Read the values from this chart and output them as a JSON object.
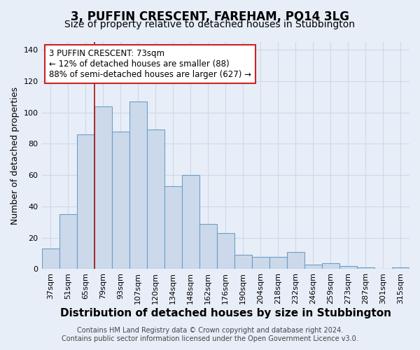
{
  "title": "3, PUFFIN CRESCENT, FAREHAM, PO14 3LG",
  "subtitle": "Size of property relative to detached houses in Stubbington",
  "xlabel": "Distribution of detached houses by size in Stubbington",
  "ylabel": "Number of detached properties",
  "footer_line1": "Contains HM Land Registry data © Crown copyright and database right 2024.",
  "footer_line2": "Contains public sector information licensed under the Open Government Licence v3.0.",
  "bar_labels": [
    "37sqm",
    "51sqm",
    "65sqm",
    "79sqm",
    "93sqm",
    "107sqm",
    "120sqm",
    "134sqm",
    "148sqm",
    "162sqm",
    "176sqm",
    "190sqm",
    "204sqm",
    "218sqm",
    "232sqm",
    "246sqm",
    "259sqm",
    "273sqm",
    "287sqm",
    "301sqm",
    "315sqm"
  ],
  "bar_values": [
    13,
    35,
    86,
    104,
    88,
    107,
    89,
    53,
    60,
    29,
    23,
    9,
    8,
    8,
    11,
    3,
    4,
    2,
    1,
    0,
    1
  ],
  "bar_color": "#ccd9ea",
  "bar_edge_color": "#6aa0c8",
  "annotation_text": "3 PUFFIN CRESCENT: 73sqm\n← 12% of detached houses are smaller (88)\n88% of semi-detached houses are larger (627) →",
  "annotation_box_color": "#ffffff",
  "annotation_box_edge": "#cc2222",
  "marker_color": "#aa1111",
  "ylim": [
    0,
    145
  ],
  "yticks": [
    0,
    20,
    40,
    60,
    80,
    100,
    120,
    140
  ],
  "bg_color": "#e8eef8",
  "grid_color": "#d0d8e8",
  "title_fontsize": 12,
  "subtitle_fontsize": 10,
  "xlabel_fontsize": 11,
  "ylabel_fontsize": 9,
  "tick_fontsize": 8,
  "footer_fontsize": 7,
  "annotation_fontsize": 8.5
}
